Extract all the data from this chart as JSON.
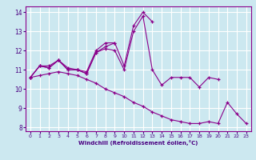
{
  "xlabel": "Windchill (Refroidissement éolien,°C)",
  "bg_color": "#cce8f0",
  "line_color": "#8b008b",
  "grid_color": "#ffffff",
  "xlim": [
    -0.5,
    23.5
  ],
  "ylim": [
    7.8,
    14.3
  ],
  "xticks": [
    0,
    1,
    2,
    3,
    4,
    5,
    6,
    7,
    8,
    9,
    10,
    11,
    12,
    13,
    14,
    15,
    16,
    17,
    18,
    19,
    20,
    21,
    22,
    23
  ],
  "yticks": [
    8,
    9,
    10,
    11,
    12,
    13,
    14
  ],
  "series": [
    [
      10.6,
      11.2,
      11.1,
      11.5,
      11.1,
      11.0,
      10.8,
      11.9,
      12.1,
      12.0,
      11.0,
      13.0,
      13.8,
      11.0,
      10.2,
      10.6,
      10.6,
      10.6,
      10.1,
      10.6,
      10.5
    ],
    [
      10.6,
      11.2,
      11.1,
      11.5,
      11.0,
      11.0,
      10.8,
      11.9,
      12.2,
      12.4,
      11.2,
      13.3,
      14.0,
      13.5
    ],
    [
      10.6,
      11.2,
      11.2,
      11.5,
      11.0,
      11.0,
      10.9,
      12.0,
      12.4,
      12.4
    ],
    [
      10.6,
      10.7,
      10.8,
      10.9,
      10.8,
      10.7,
      10.5,
      10.3,
      10.0,
      9.8,
      9.6,
      9.3,
      9.1,
      8.8,
      8.6,
      8.4,
      8.3,
      8.2,
      8.2,
      8.3,
      8.2,
      9.3,
      8.7,
      8.2
    ]
  ],
  "series_x": [
    [
      0,
      1,
      2,
      3,
      4,
      5,
      6,
      7,
      8,
      9,
      10,
      11,
      12,
      13,
      14,
      15,
      16,
      17,
      18,
      19,
      20
    ],
    [
      0,
      1,
      2,
      3,
      4,
      5,
      6,
      7,
      8,
      9,
      10,
      11,
      12,
      13
    ],
    [
      0,
      1,
      2,
      3,
      4,
      5,
      6,
      7,
      8,
      9
    ],
    [
      0,
      1,
      2,
      3,
      4,
      5,
      6,
      7,
      8,
      9,
      10,
      11,
      12,
      13,
      14,
      15,
      16,
      17,
      18,
      19,
      20,
      21,
      22,
      23
    ]
  ]
}
